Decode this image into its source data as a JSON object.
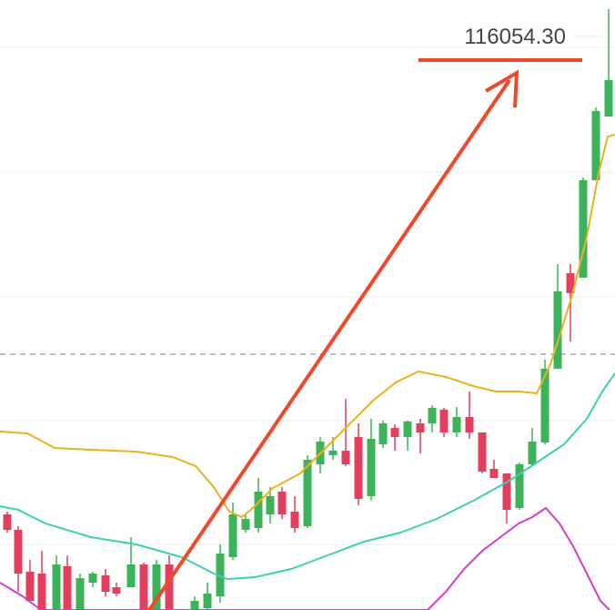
{
  "price_label": "116054.30"
}
